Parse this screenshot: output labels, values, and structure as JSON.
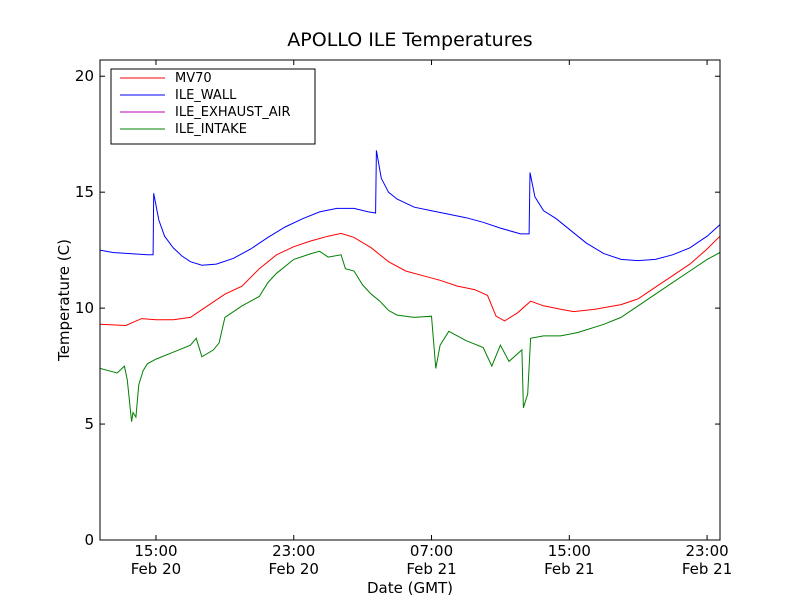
{
  "chart_data": {
    "type": "line",
    "title": "APOLLO ILE Temperatures",
    "xlabel": "Date (GMT)",
    "ylabel": "Temperature (C)",
    "ylim": [
      0,
      20.7
    ],
    "xlim": [
      "2014-02-20 11:45",
      "2014-02-21 23:45"
    ],
    "yticks": [
      0,
      5,
      10,
      15,
      20
    ],
    "xticks": [
      {
        "t": "2014-02-20 15:00",
        "label1": "15:00",
        "label2": "Feb 20"
      },
      {
        "t": "2014-02-20 23:00",
        "label1": "23:00",
        "label2": "Feb 20"
      },
      {
        "t": "2014-02-21 07:00",
        "label1": "07:00",
        "label2": "Feb 21"
      },
      {
        "t": "2014-02-21 15:00",
        "label1": "15:00",
        "label2": "Feb 21"
      },
      {
        "t": "2014-02-21 23:00",
        "label1": "23:00",
        "label2": "Feb 21"
      }
    ],
    "grid": false,
    "legend_position": "top-left",
    "series": [
      {
        "name": "MV70",
        "color": "#ff0000",
        "points": [
          [
            "2014-02-20 11:45",
            9.3
          ],
          [
            "2014-02-20 13:15",
            9.25
          ],
          [
            "2014-02-20 14:10",
            9.55
          ],
          [
            "2014-02-20 15:00",
            9.5
          ],
          [
            "2014-02-20 16:00",
            9.5
          ],
          [
            "2014-02-20 17:00",
            9.6
          ],
          [
            "2014-02-20 18:00",
            10.1
          ],
          [
            "2014-02-20 19:00",
            10.6
          ],
          [
            "2014-02-20 20:00",
            10.95
          ],
          [
            "2014-02-20 21:00",
            11.7
          ],
          [
            "2014-02-20 22:00",
            12.3
          ],
          [
            "2014-02-20 23:00",
            12.65
          ],
          [
            "2014-02-21 00:00",
            12.9
          ],
          [
            "2014-02-21 01:00",
            13.1
          ],
          [
            "2014-02-21 01:45",
            13.22
          ],
          [
            "2014-02-21 02:30",
            13.05
          ],
          [
            "2014-02-21 03:30",
            12.6
          ],
          [
            "2014-02-21 04:30",
            12.0
          ],
          [
            "2014-02-21 05:30",
            11.6
          ],
          [
            "2014-02-21 06:30",
            11.4
          ],
          [
            "2014-02-21 07:30",
            11.2
          ],
          [
            "2014-02-21 08:30",
            10.95
          ],
          [
            "2014-02-21 09:30",
            10.8
          ],
          [
            "2014-02-21 10:15",
            10.55
          ],
          [
            "2014-02-21 10:45",
            9.65
          ],
          [
            "2014-02-21 11:15",
            9.45
          ],
          [
            "2014-02-21 12:00",
            9.8
          ],
          [
            "2014-02-21 12:45",
            10.3
          ],
          [
            "2014-02-21 13:30",
            10.1
          ],
          [
            "2014-02-21 14:30",
            9.95
          ],
          [
            "2014-02-21 15:15",
            9.85
          ],
          [
            "2014-02-21 16:30",
            9.95
          ],
          [
            "2014-02-21 18:00",
            10.15
          ],
          [
            "2014-02-21 19:00",
            10.4
          ],
          [
            "2014-02-21 20:00",
            10.9
          ],
          [
            "2014-02-21 21:00",
            11.4
          ],
          [
            "2014-02-21 22:00",
            11.9
          ],
          [
            "2014-02-21 23:00",
            12.55
          ],
          [
            "2014-02-21 23:45",
            13.1
          ]
        ]
      },
      {
        "name": "ILE_WALL",
        "color": "#0000ff",
        "points": [
          [
            "2014-02-20 11:45",
            12.5
          ],
          [
            "2014-02-20 12:30",
            12.4
          ],
          [
            "2014-02-20 13:30",
            12.35
          ],
          [
            "2014-02-20 14:30",
            12.3
          ],
          [
            "2014-02-20 14:50",
            12.3
          ],
          [
            "2014-02-20 14:52",
            14.95
          ],
          [
            "2014-02-20 15:10",
            13.8
          ],
          [
            "2014-02-20 15:30",
            13.1
          ],
          [
            "2014-02-20 16:00",
            12.6
          ],
          [
            "2014-02-20 16:30",
            12.25
          ],
          [
            "2014-02-20 17:00",
            12.0
          ],
          [
            "2014-02-20 17:40",
            11.85
          ],
          [
            "2014-02-20 18:30",
            11.9
          ],
          [
            "2014-02-20 19:30",
            12.15
          ],
          [
            "2014-02-20 20:30",
            12.55
          ],
          [
            "2014-02-20 21:30",
            13.05
          ],
          [
            "2014-02-20 22:30",
            13.5
          ],
          [
            "2014-02-20 23:30",
            13.85
          ],
          [
            "2014-02-21 00:30",
            14.15
          ],
          [
            "2014-02-21 01:30",
            14.3
          ],
          [
            "2014-02-21 02:30",
            14.3
          ],
          [
            "2014-02-21 03:20",
            14.15
          ],
          [
            "2014-02-21 03:45",
            14.1
          ],
          [
            "2014-02-21 03:48",
            16.8
          ],
          [
            "2014-02-21 04:05",
            15.6
          ],
          [
            "2014-02-21 04:30",
            15.0
          ],
          [
            "2014-02-21 05:00",
            14.7
          ],
          [
            "2014-02-21 06:00",
            14.35
          ],
          [
            "2014-02-21 07:00",
            14.2
          ],
          [
            "2014-02-21 08:00",
            14.05
          ],
          [
            "2014-02-21 09:00",
            13.9
          ],
          [
            "2014-02-21 10:00",
            13.7
          ],
          [
            "2014-02-21 11:00",
            13.45
          ],
          [
            "2014-02-21 12:10",
            13.2
          ],
          [
            "2014-02-21 12:40",
            13.2
          ],
          [
            "2014-02-21 12:43",
            15.85
          ],
          [
            "2014-02-21 13:00",
            14.8
          ],
          [
            "2014-02-21 13:30",
            14.2
          ],
          [
            "2014-02-21 14:15",
            13.85
          ],
          [
            "2014-02-21 15:00",
            13.4
          ],
          [
            "2014-02-21 16:00",
            12.8
          ],
          [
            "2014-02-21 17:00",
            12.35
          ],
          [
            "2014-02-21 18:00",
            12.1
          ],
          [
            "2014-02-21 19:00",
            12.05
          ],
          [
            "2014-02-21 20:00",
            12.1
          ],
          [
            "2014-02-21 21:00",
            12.3
          ],
          [
            "2014-02-21 22:00",
            12.6
          ],
          [
            "2014-02-21 23:00",
            13.1
          ],
          [
            "2014-02-21 23:45",
            13.6
          ]
        ]
      },
      {
        "name": "ILE_EXHAUST_AIR",
        "color": "#bf00bf",
        "points": []
      },
      {
        "name": "ILE_INTAKE",
        "color": "#008000",
        "points": [
          [
            "2014-02-20 11:45",
            7.4
          ],
          [
            "2014-02-20 12:15",
            7.3
          ],
          [
            "2014-02-20 12:45",
            7.2
          ],
          [
            "2014-02-20 13:10",
            7.5
          ],
          [
            "2014-02-20 13:20",
            6.9
          ],
          [
            "2014-02-20 13:35",
            5.1
          ],
          [
            "2014-02-20 13:40",
            5.5
          ],
          [
            "2014-02-20 13:50",
            5.3
          ],
          [
            "2014-02-20 14:00",
            6.7
          ],
          [
            "2014-02-20 14:15",
            7.3
          ],
          [
            "2014-02-20 14:30",
            7.6
          ],
          [
            "2014-02-20 15:00",
            7.8
          ],
          [
            "2014-02-20 16:00",
            8.1
          ],
          [
            "2014-02-20 17:00",
            8.4
          ],
          [
            "2014-02-20 17:20",
            8.7
          ],
          [
            "2014-02-20 17:40",
            7.9
          ],
          [
            "2014-02-20 18:20",
            8.2
          ],
          [
            "2014-02-20 18:40",
            8.5
          ],
          [
            "2014-02-20 19:00",
            9.6
          ],
          [
            "2014-02-20 20:00",
            10.1
          ],
          [
            "2014-02-20 21:00",
            10.5
          ],
          [
            "2014-02-20 21:30",
            11.1
          ],
          [
            "2014-02-20 22:00",
            11.5
          ],
          [
            "2014-02-20 23:00",
            12.1
          ],
          [
            "2014-02-21 00:00",
            12.35
          ],
          [
            "2014-02-21 00:30",
            12.45
          ],
          [
            "2014-02-21 01:00",
            12.2
          ],
          [
            "2014-02-21 01:45",
            12.3
          ],
          [
            "2014-02-21 02:00",
            11.7
          ],
          [
            "2014-02-21 02:30",
            11.6
          ],
          [
            "2014-02-21 03:00",
            11.0
          ],
          [
            "2014-02-21 03:30",
            10.6
          ],
          [
            "2014-02-21 04:00",
            10.3
          ],
          [
            "2014-02-21 04:30",
            9.9
          ],
          [
            "2014-02-21 05:00",
            9.7
          ],
          [
            "2014-02-21 06:00",
            9.6
          ],
          [
            "2014-02-21 07:00",
            9.65
          ],
          [
            "2014-02-21 07:15",
            7.4
          ],
          [
            "2014-02-21 07:30",
            8.4
          ],
          [
            "2014-02-21 08:00",
            9.0
          ],
          [
            "2014-02-21 09:00",
            8.6
          ],
          [
            "2014-02-21 10:00",
            8.3
          ],
          [
            "2014-02-21 10:30",
            7.5
          ],
          [
            "2014-02-21 11:00",
            8.4
          ],
          [
            "2014-02-21 11:30",
            7.7
          ],
          [
            "2014-02-21 12:15",
            8.2
          ],
          [
            "2014-02-21 12:20",
            5.7
          ],
          [
            "2014-02-21 12:35",
            6.3
          ],
          [
            "2014-02-21 12:45",
            8.7
          ],
          [
            "2014-02-21 13:30",
            8.8
          ],
          [
            "2014-02-21 14:30",
            8.8
          ],
          [
            "2014-02-21 15:30",
            8.95
          ],
          [
            "2014-02-21 17:00",
            9.3
          ],
          [
            "2014-02-21 18:00",
            9.6
          ],
          [
            "2014-02-21 19:00",
            10.1
          ],
          [
            "2014-02-21 20:00",
            10.6
          ],
          [
            "2014-02-21 21:00",
            11.1
          ],
          [
            "2014-02-21 22:00",
            11.6
          ],
          [
            "2014-02-21 23:00",
            12.1
          ],
          [
            "2014-02-21 23:45",
            12.4
          ]
        ]
      }
    ]
  }
}
